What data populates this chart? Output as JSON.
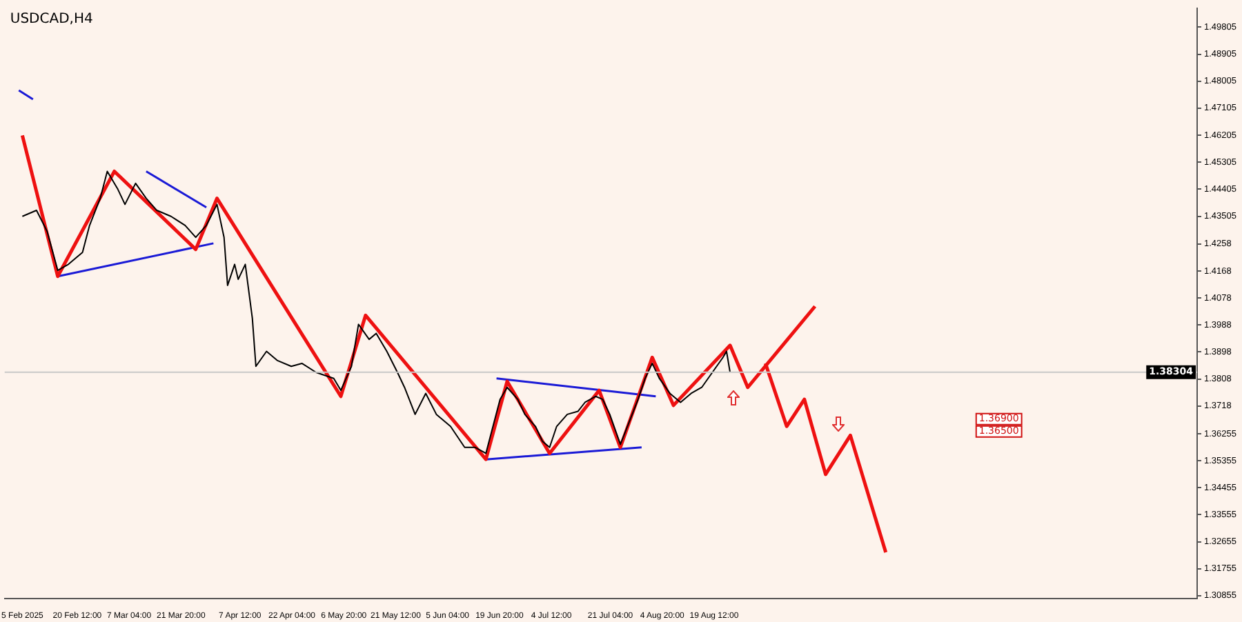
{
  "chart_data": {
    "type": "line",
    "title": "USDCAD,H4",
    "xlim": [
      "2025-01-31",
      "2026-01-03"
    ],
    "ylim": [
      1.3077,
      1.5044
    ],
    "xticks": [
      {
        "value": "2025-02-05",
        "label": "5 Feb 2025"
      },
      {
        "value": "2025-02-20T12:00",
        "label": "20 Feb 12:00"
      },
      {
        "value": "2025-03-07T04:00",
        "label": "7 Mar 04:00"
      },
      {
        "value": "2025-03-21T20:00",
        "label": "21 Mar 20:00"
      },
      {
        "value": "2025-04-07T12:00",
        "label": "7 Apr 12:00"
      },
      {
        "value": "2025-04-22T04:00",
        "label": "22 Apr 04:00"
      },
      {
        "value": "2025-05-06T20:00",
        "label": "6 May 20:00"
      },
      {
        "value": "2025-05-21T12:00",
        "label": "21 May 12:00"
      },
      {
        "value": "2025-06-05T04:00",
        "label": "5 Jun 04:00"
      },
      {
        "value": "2025-06-19T20:00",
        "label": "19 Jun 20:00"
      },
      {
        "value": "2025-07-04T12:00",
        "label": "4 Jul 12:00"
      },
      {
        "value": "2025-07-21T04:00",
        "label": "21 Jul 04:00"
      },
      {
        "value": "2025-08-04T20:00",
        "label": "4 Aug 20:00"
      },
      {
        "value": "2025-08-19T12:00",
        "label": "19 Aug 12:00"
      }
    ],
    "yticks": [
      1.49805,
      1.48905,
      1.48005,
      1.47105,
      1.46205,
      1.45305,
      1.44405,
      1.43505,
      1.4258,
      1.4168,
      1.4078,
      1.3988,
      1.3898,
      1.3808,
      1.3718,
      1.36255,
      1.35355,
      1.34455,
      1.33555,
      1.32655,
      1.31755,
      1.30855
    ],
    "marker": "none",
    "series": [
      {
        "color": "#000000",
        "x": [
          "2025-02-05",
          "2025-02-09",
          "2025-02-12",
          "2025-02-15",
          "2025-02-18",
          "2025-02-22",
          "2025-02-24",
          "2025-02-27",
          "2025-03-01",
          "2025-03-04",
          "2025-03-06",
          "2025-03-09",
          "2025-03-12",
          "2025-03-15",
          "2025-03-19",
          "2025-03-23",
          "2025-03-26",
          "2025-03-29",
          "2025-04-01",
          "2025-04-03",
          "2025-04-04",
          "2025-04-06",
          "2025-04-07",
          "2025-04-09",
          "2025-04-11",
          "2025-04-12",
          "2025-04-15",
          "2025-04-18",
          "2025-04-22",
          "2025-04-25",
          "2025-04-29",
          "2025-05-04",
          "2025-05-06",
          "2025-05-09",
          "2025-05-11",
          "2025-05-14",
          "2025-05-16",
          "2025-05-19",
          "2025-05-22",
          "2025-05-24",
          "2025-05-27",
          "2025-05-30",
          "2025-06-02",
          "2025-06-06",
          "2025-06-10",
          "2025-06-13",
          "2025-06-16",
          "2025-06-18",
          "2025-06-20",
          "2025-06-22",
          "2025-06-25",
          "2025-06-27",
          "2025-06-30",
          "2025-07-02",
          "2025-07-04",
          "2025-07-06",
          "2025-07-09",
          "2025-07-12",
          "2025-07-14",
          "2025-07-17",
          "2025-07-19",
          "2025-07-21",
          "2025-07-24",
          "2025-07-26",
          "2025-07-29",
          "2025-07-31",
          "2025-08-02",
          "2025-08-04",
          "2025-08-07",
          "2025-08-10",
          "2025-08-13",
          "2025-08-16",
          "2025-08-19",
          "2025-08-22",
          "2025-08-23",
          "2025-08-24"
        ],
        "values": [
          1.435,
          1.437,
          1.43,
          1.417,
          1.419,
          1.423,
          1.432,
          1.441,
          1.45,
          1.444,
          1.439,
          1.446,
          1.441,
          1.437,
          1.435,
          1.432,
          1.428,
          1.432,
          1.439,
          1.428,
          1.412,
          1.419,
          1.414,
          1.419,
          1.401,
          1.385,
          1.39,
          1.387,
          1.385,
          1.386,
          1.383,
          1.381,
          1.377,
          1.385,
          1.399,
          1.394,
          1.396,
          1.39,
          1.383,
          1.378,
          1.369,
          1.376,
          1.369,
          1.365,
          1.358,
          1.358,
          1.356,
          1.365,
          1.374,
          1.378,
          1.374,
          1.369,
          1.365,
          1.36,
          1.358,
          1.365,
          1.369,
          1.37,
          1.373,
          1.375,
          1.374,
          1.369,
          1.359,
          1.365,
          1.374,
          1.381,
          1.386,
          1.381,
          1.376,
          1.373,
          1.376,
          1.378,
          1.383,
          1.388,
          1.39,
          1.383
        ]
      },
      {
        "color": "#ee1111",
        "x": [
          "2025-02-05",
          "2025-02-15",
          "2025-03-03",
          "2025-03-26",
          "2025-04-01",
          "2025-05-06",
          "2025-05-13",
          "2025-06-16",
          "2025-06-22",
          "2025-07-04",
          "2025-07-18",
          "2025-07-24",
          "2025-08-02",
          "2025-08-08",
          "2025-08-24",
          "2025-08-29",
          "2025-09-17"
        ],
        "values": [
          1.462,
          1.415,
          1.45,
          1.424,
          1.441,
          1.375,
          1.402,
          1.354,
          1.38,
          1.356,
          1.377,
          1.358,
          1.388,
          1.372,
          1.392,
          1.378,
          1.405
        ]
      },
      {
        "color": "#ee1111",
        "x": [
          "2025-09-03",
          "2025-09-09",
          "2025-09-14",
          "2025-09-20",
          "2025-09-27",
          "2025-10-07"
        ],
        "values": [
          1.386,
          1.365,
          1.374,
          1.349,
          1.362,
          1.323
        ]
      },
      {
        "color": "#1a1ad6",
        "x": [
          "2025-02-04",
          "2025-02-08"
        ],
        "values": [
          1.477,
          1.474
        ]
      },
      {
        "color": "#1a1ad6",
        "x": [
          "2025-03-12",
          "2025-03-29"
        ],
        "values": [
          1.45,
          1.438
        ]
      },
      {
        "color": "#1a1ad6",
        "x": [
          "2025-02-15",
          "2025-03-31"
        ],
        "values": [
          1.415,
          1.426
        ]
      },
      {
        "color": "#1a1ad6",
        "x": [
          "2025-06-19",
          "2025-08-03"
        ],
        "values": [
          1.381,
          1.375
        ]
      },
      {
        "color": "#1a1ad6",
        "x": [
          "2025-06-16",
          "2025-07-30"
        ],
        "values": [
          1.354,
          1.358
        ]
      }
    ],
    "ref_lines": [
      {
        "axis": "y",
        "value": 1.38304,
        "label": "1.38304",
        "color": "#c8c8c8"
      }
    ],
    "annotations": [
      "1.36900",
      "1.36500"
    ]
  }
}
